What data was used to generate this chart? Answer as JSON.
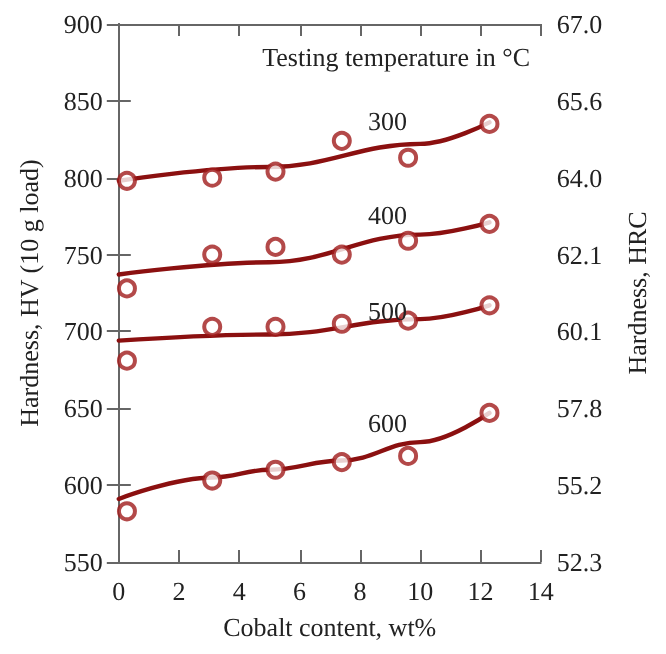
{
  "chart_data": {
    "type": "scatter",
    "xlabel": "Cobalt content, wt%",
    "ylabel": "Hardness, HV (10 g load)",
    "y2label": "Hardness, HRC",
    "xlim": [
      0,
      14
    ],
    "xticks": [
      0,
      2,
      4,
      6,
      8,
      10,
      12,
      14
    ],
    "ylim": [
      550,
      900
    ],
    "yticks": [
      550,
      600,
      650,
      700,
      750,
      800,
      850,
      900
    ],
    "y2_categories": [
      "67.0",
      "65.6",
      "64.0",
      "62.1",
      "60.1",
      "57.8",
      "55.2",
      "52.3"
    ],
    "grid": false,
    "series": [
      {
        "marker": "circle",
        "color": "#a01c1c",
        "x": [
          0.27,
          3.1,
          5.2,
          7.4,
          9.6,
          12.3
        ],
        "values": [
          798,
          800,
          804,
          824,
          813,
          835
        ]
      },
      {
        "marker": "circle",
        "color": "#a01c1c",
        "x": [
          0.27,
          3.1,
          5.2,
          7.4,
          9.6,
          12.3
        ],
        "values": [
          728,
          750,
          755,
          750,
          759,
          770
        ]
      },
      {
        "marker": "circle",
        "color": "#a01c1c",
        "x": [
          0.27,
          3.1,
          5.2,
          7.4,
          9.6,
          12.3
        ],
        "values": [
          681,
          703,
          703,
          705,
          707,
          717
        ]
      },
      {
        "marker": "circle",
        "color": "#a01c1c",
        "x": [
          0.27,
          3.1,
          5.2,
          7.4,
          9.6,
          12.3
        ],
        "values": [
          583,
          603,
          610,
          615,
          619,
          647
        ]
      },
      {
        "type": "line",
        "marker": "none",
        "color": "#8b1010",
        "x": [
          0,
          5,
          10,
          12.3
        ],
        "values": [
          798,
          807,
          822,
          836
        ]
      },
      {
        "type": "line",
        "marker": "none",
        "color": "#8b1010",
        "x": [
          0,
          5,
          10,
          12.3
        ],
        "values": [
          737,
          745,
          763,
          771
        ]
      },
      {
        "type": "line",
        "marker": "none",
        "color": "#8b1010",
        "x": [
          0,
          5,
          10,
          12.3
        ],
        "values": [
          694,
          698,
          708,
          717
        ]
      },
      {
        "type": "line",
        "marker": "none",
        "color": "#8b1010",
        "x": [
          0,
          3.1,
          5,
          7.4,
          10,
          12.3
        ],
        "values": [
          591,
          605,
          610,
          616,
          628,
          647
        ]
      }
    ],
    "annotations": [
      "Testing temperature in °C",
      "300",
      "400",
      "500",
      "600"
    ]
  }
}
